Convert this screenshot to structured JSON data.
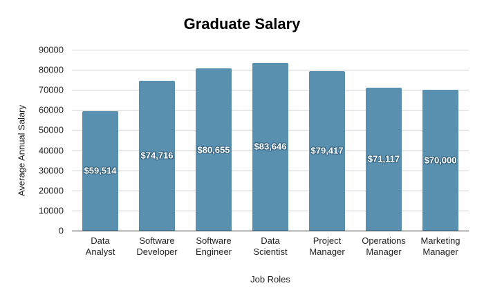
{
  "chart_data": {
    "type": "bar",
    "title": "Graduate Salary",
    "xlabel": "Job Roles",
    "ylabel": "Average Annual Salary",
    "categories": [
      "Data Analyst",
      "Software Developer",
      "Software Engineer",
      "Data Scientist",
      "Project Manager",
      "Operations Manager",
      "Marketing Manager"
    ],
    "category_lines": [
      [
        "Data",
        "Analyst"
      ],
      [
        "Software",
        "Developer"
      ],
      [
        "Software",
        "Engineer"
      ],
      [
        "Data",
        "Scientist"
      ],
      [
        "Project",
        "Manager"
      ],
      [
        "Operations",
        "Manager"
      ],
      [
        "Marketing",
        "Manager"
      ]
    ],
    "values": [
      59514,
      74716,
      80655,
      83646,
      79417,
      71117,
      70000
    ],
    "data_labels": [
      "$59,514",
      "$74,716",
      "$80,655",
      "$83,646",
      "$79,417",
      "$71,117",
      "$70,000"
    ],
    "ylim": [
      0,
      90000
    ],
    "yticks": [
      "0",
      "10000",
      "20000",
      "30000",
      "40000",
      "50000",
      "60000",
      "70000",
      "80000",
      "90000"
    ],
    "grid": true,
    "legend": "none",
    "bar_color": "#5990b0"
  }
}
